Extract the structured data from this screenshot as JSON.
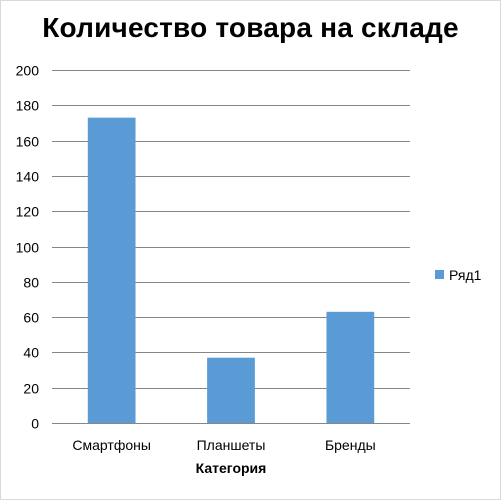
{
  "chart_data": {
    "type": "bar",
    "title": "Количество товара на складе",
    "categories": [
      "Смартфоны",
      "Планшеты",
      "Бренды"
    ],
    "series": [
      {
        "name": "Ряд1",
        "values": [
          173,
          37,
          63
        ],
        "color": "#5b9bd5"
      }
    ],
    "xlabel": "Категория",
    "ylabel": "",
    "ylim": [
      0,
      200
    ],
    "yticks": [
      "0",
      "20",
      "40",
      "60",
      "80",
      "100",
      "120",
      "140",
      "160",
      "180",
      "200"
    ],
    "grid": true,
    "legend_position": "right"
  },
  "colors": {
    "gridline": "#868686",
    "border": "#d9d9d9",
    "bar": "#5b9bd5"
  }
}
